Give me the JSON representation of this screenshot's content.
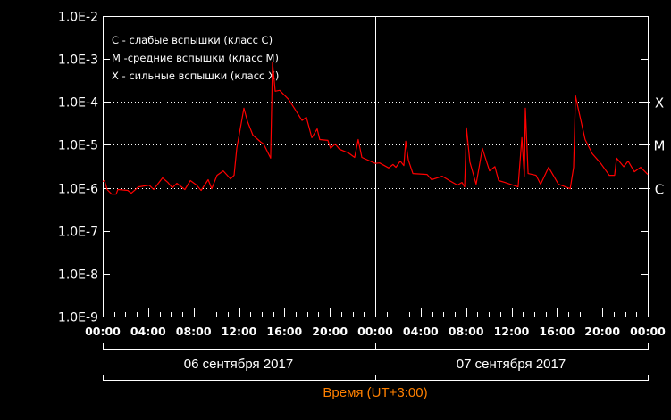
{
  "chart_data": {
    "type": "line",
    "yscale": "log",
    "ylim": [
      1e-09,
      0.01
    ],
    "xlim": [
      "2017-09-06T00:00",
      "2017-09-08T00:00"
    ],
    "grid": "dotted lines at class levels C, M, X",
    "y_tick_labels": [
      "1.0E-2",
      "1.0E-3",
      "1.0E-4",
      "1.0E-5",
      "1.0E-6",
      "1.0E-7",
      "1.0E-8",
      "1.0E-9"
    ],
    "x_tick_labels": [
      "00:00",
      "04:00",
      "08:00",
      "12:00",
      "16:00",
      "20:00",
      "00:00",
      "04:00",
      "08:00",
      "12:00",
      "16:00",
      "20:00",
      "00:00"
    ],
    "date_labels": [
      "06 сентября 2017",
      "07 сентября 2017"
    ],
    "xlabel": "Время (UT+3:00)",
    "class_levels": [
      {
        "label": "X",
        "value": 0.0001
      },
      {
        "label": "M",
        "value": 1e-05
      },
      {
        "label": "C",
        "value": 1e-06
      }
    ],
    "legend": [
      "C - слабые вспышки (класс C)",
      "M -средние вспышки (класс M)",
      "X - сильные вспышки (класс X)"
    ],
    "colors": {
      "line": "#ff0000",
      "xlabel": "#ff8000",
      "axes": "#ffffff",
      "background": "#000000"
    },
    "series": [
      {
        "points": [
          [
            "2017-09-06T00:00",
            1.4e-06
          ],
          [
            "2017-09-06T00:10",
            1.47e-06
          ],
          [
            "2017-09-06T00:23",
            9.1e-07
          ],
          [
            "2017-09-06T00:47",
            7.1e-07
          ],
          [
            "2017-09-06T01:11",
            7.1e-07
          ],
          [
            "2017-09-06T01:20",
            9.1e-07
          ],
          [
            "2017-09-06T02:12",
            8.7e-07
          ],
          [
            "2017-09-06T02:31",
            7.5e-07
          ],
          [
            "2017-09-06T03:09",
            1.05e-06
          ],
          [
            "2017-09-06T04:05",
            1.15e-06
          ],
          [
            "2017-09-06T04:29",
            9.1e-07
          ],
          [
            "2017-09-06T05:16",
            1.7e-06
          ],
          [
            "2017-09-06T05:44",
            1.33e-06
          ],
          [
            "2017-09-06T06:08",
            1e-06
          ],
          [
            "2017-09-06T06:32",
            1.27e-06
          ],
          [
            "2017-09-06T07:14",
            9.1e-07
          ],
          [
            "2017-09-06T07:43",
            1.47e-06
          ],
          [
            "2017-09-06T08:16",
            1.15e-06
          ],
          [
            "2017-09-06T08:40",
            8.7e-07
          ],
          [
            "2017-09-06T09:17",
            1.54e-06
          ],
          [
            "2017-09-06T09:36",
            9.5e-07
          ],
          [
            "2017-09-06T10:04",
            1.95e-06
          ],
          [
            "2017-09-06T10:37",
            2.48e-06
          ],
          [
            "2017-09-06T11:15",
            1.61e-06
          ],
          [
            "2017-09-06T11:34",
            1.95e-06
          ],
          [
            "2017-09-06T11:48",
            8.3e-06
          ],
          [
            "2017-09-06T12:26",
            7.1e-05
          ],
          [
            "2017-09-06T12:45",
            3.5e-05
          ],
          [
            "2017-09-06T13:13",
            1.69e-05
          ],
          [
            "2017-09-06T13:56",
            1.15e-05
          ],
          [
            "2017-09-06T14:10",
            1.05e-05
          ],
          [
            "2017-09-06T14:47",
            4.9e-06
          ],
          [
            "2017-09-06T14:57",
            0.00083
          ],
          [
            "2017-09-06T15:11",
            0.000177
          ],
          [
            "2017-09-06T15:35",
            0.000186
          ],
          [
            "2017-09-06T16:22",
            0.000115
          ],
          [
            "2017-09-06T16:55",
            6.8e-05
          ],
          [
            "2017-09-06T17:33",
            3.7e-05
          ],
          [
            "2017-09-06T17:56",
            4.4e-05
          ],
          [
            "2017-09-06T18:25",
            1.47e-05
          ],
          [
            "2017-09-06T18:53",
            2.36e-05
          ],
          [
            "2017-09-06T19:07",
            1.33e-05
          ],
          [
            "2017-09-06T19:50",
            1.27e-05
          ],
          [
            "2017-09-06T20:04",
            8.3e-06
          ],
          [
            "2017-09-06T20:28",
            1.05e-05
          ],
          [
            "2017-09-06T20:51",
            7.9e-06
          ],
          [
            "2017-09-06T21:38",
            6.5e-06
          ],
          [
            "2017-09-06T22:11",
            5.1e-06
          ],
          [
            "2017-09-06T22:30",
            1.33e-05
          ],
          [
            "2017-09-06T22:49",
            5.1e-06
          ],
          [
            "2017-09-07T00:00",
            3.7e-06
          ],
          [
            "2017-09-07T00:23",
            3.8e-06
          ],
          [
            "2017-09-07T01:11",
            2.9e-06
          ],
          [
            "2017-09-07T01:34",
            3.5e-06
          ],
          [
            "2017-09-07T01:49",
            3e-06
          ],
          [
            "2017-09-07T02:12",
            4.2e-06
          ],
          [
            "2017-09-07T02:31",
            3.3e-06
          ],
          [
            "2017-09-07T02:41",
            1.21e-05
          ],
          [
            "2017-09-07T02:55",
            4.4e-06
          ],
          [
            "2017-09-07T03:19",
            2.15e-06
          ],
          [
            "2017-09-07T04:34",
            2.05e-06
          ],
          [
            "2017-09-07T04:58",
            1.54e-06
          ],
          [
            "2017-09-07T05:54",
            1.86e-06
          ],
          [
            "2017-09-07T06:32",
            1.47e-06
          ],
          [
            "2017-09-07T07:14",
            1.15e-06
          ],
          [
            "2017-09-07T07:38",
            1.33e-06
          ],
          [
            "2017-09-07T07:52",
            1.05e-06
          ],
          [
            "2017-09-07T08:02",
            2.48e-05
          ],
          [
            "2017-09-07T08:20",
            4e-06
          ],
          [
            "2017-09-07T08:53",
            1.21e-06
          ],
          [
            "2017-09-07T09:26",
            8.3e-06
          ],
          [
            "2017-09-07T09:41",
            5.1e-06
          ],
          [
            "2017-09-07T10:04",
            2.48e-06
          ],
          [
            "2017-09-07T10:32",
            3.1e-06
          ],
          [
            "2017-09-07T10:52",
            1.47e-06
          ],
          [
            "2017-09-07T11:25",
            1.33e-06
          ],
          [
            "2017-09-07T12:35",
            1.05e-06
          ],
          [
            "2017-09-07T12:55",
            1.47e-05
          ],
          [
            "2017-09-07T13:08",
            1.86e-06
          ],
          [
            "2017-09-07T13:13",
            7.1e-05
          ],
          [
            "2017-09-07T13:28",
            2.15e-06
          ],
          [
            "2017-09-07T14:10",
            1.95e-06
          ],
          [
            "2017-09-07T14:34",
            1.21e-06
          ],
          [
            "2017-09-07T15:16",
            3e-06
          ],
          [
            "2017-09-07T16:08",
            1.21e-06
          ],
          [
            "2017-09-07T17:10",
            9.5e-07
          ],
          [
            "2017-09-07T17:28",
            3e-06
          ],
          [
            "2017-09-07T17:38",
            0.00014
          ],
          [
            "2017-09-07T17:52",
            7.1e-05
          ],
          [
            "2017-09-07T18:29",
            1.33e-05
          ],
          [
            "2017-09-07T19:07",
            6.2e-06
          ],
          [
            "2017-09-07T19:50",
            3.8e-06
          ],
          [
            "2017-09-07T20:37",
            1.95e-06
          ],
          [
            "2017-09-07T21:05",
            1.95e-06
          ],
          [
            "2017-09-07T21:15",
            4.9e-06
          ],
          [
            "2017-09-07T21:53",
            3.1e-06
          ],
          [
            "2017-09-07T22:16",
            4.2e-06
          ],
          [
            "2017-09-07T22:49",
            2.36e-06
          ],
          [
            "2017-09-07T23:22",
            3e-06
          ],
          [
            "2017-09-08T00:00",
            2.05e-06
          ]
        ]
      }
    ]
  }
}
